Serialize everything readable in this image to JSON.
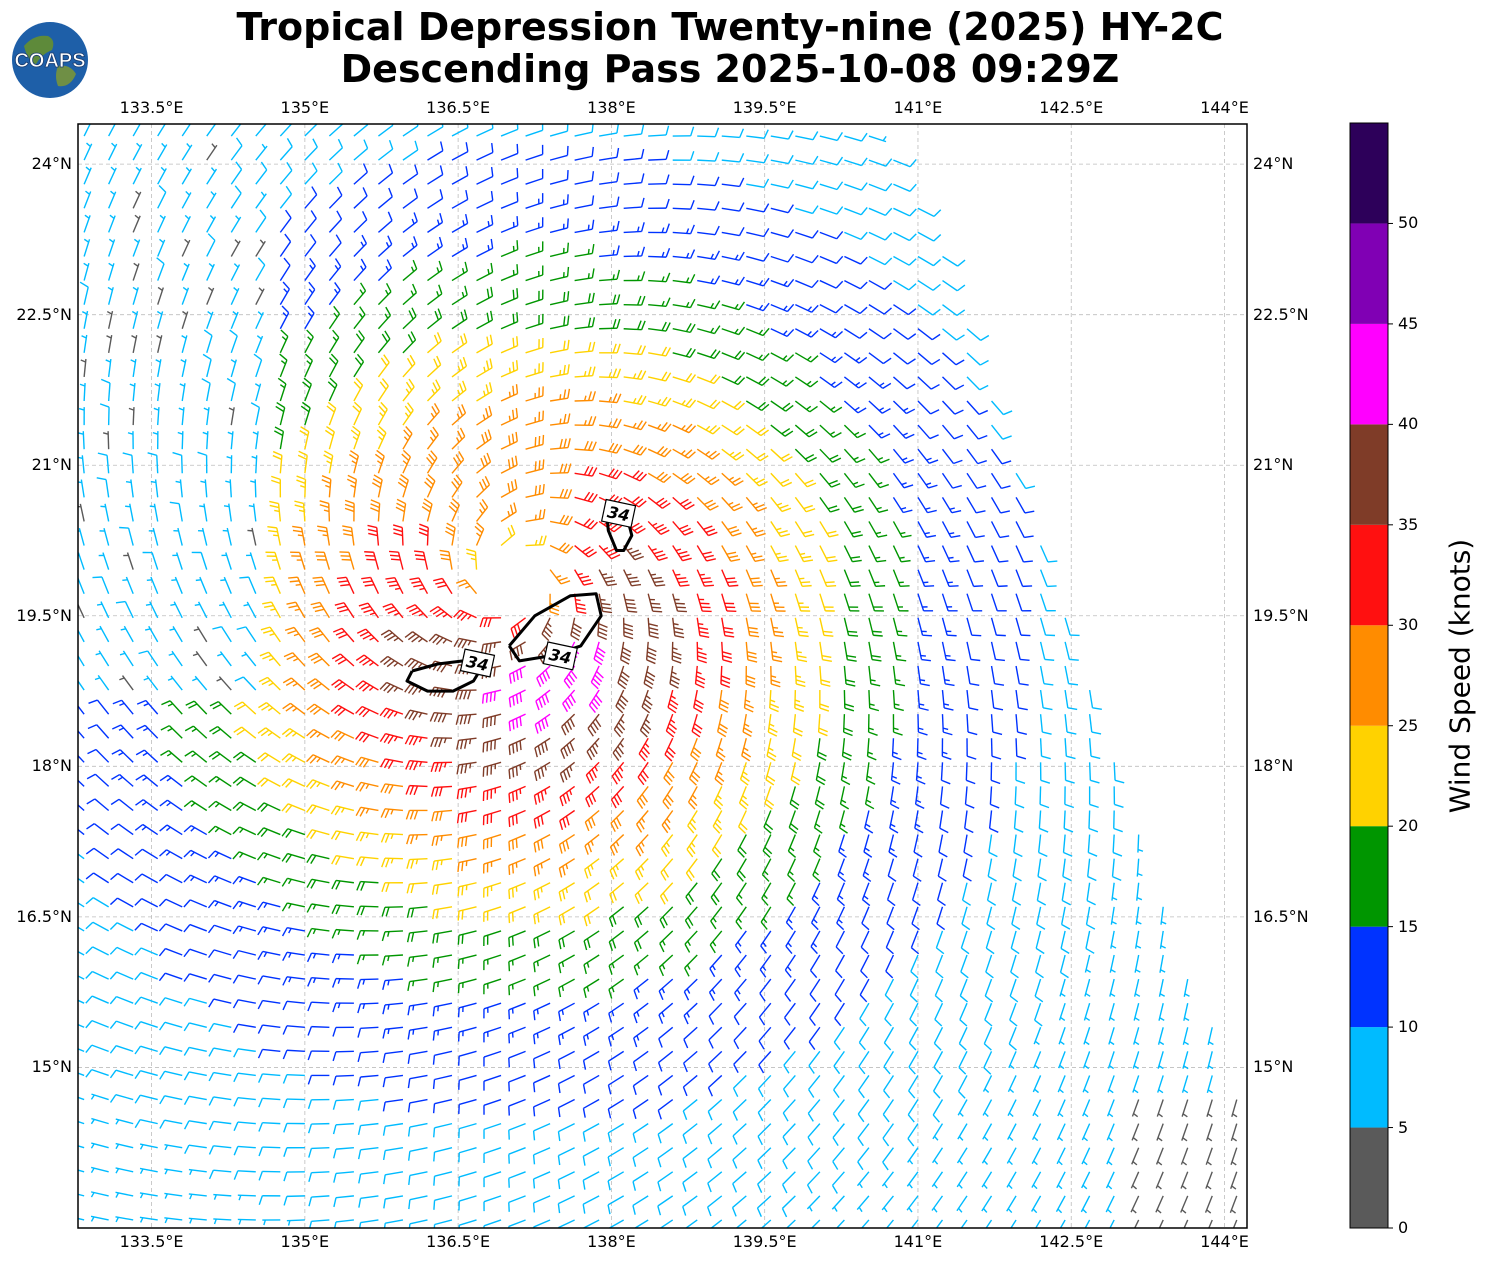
{
  "header": {
    "title_line1": "Tropical Depression Twenty-nine (2025) HY-2C",
    "title_line2": "Descending Pass 2025-10-08 09:29Z",
    "logo_text": "COAPS"
  },
  "map": {
    "lon_ticks": [
      "133.5°E",
      "135°E",
      "136.5°E",
      "138°E",
      "139.5°E",
      "141°E",
      "142.5°E",
      "144°E"
    ],
    "lat_ticks": [
      "24°N",
      "22.5°N",
      "21°N",
      "19.5°N",
      "18°N",
      "16.5°N",
      "15°N"
    ],
    "lon_values": [
      133.5,
      135,
      136.5,
      138,
      139.5,
      141,
      142.5,
      144
    ],
    "lat_values": [
      24,
      22.5,
      21,
      19.5,
      18,
      16.5,
      15
    ],
    "lon_range": [
      132.78,
      144.22
    ],
    "lat_range": [
      13.4,
      24.4
    ],
    "storm_center": {
      "lon": 137.05,
      "lat": 19.85
    },
    "contour_label": "34",
    "contour_labels": [
      {
        "text": "34",
        "lon": 138.07,
        "lat": 20.52
      },
      {
        "text": "34",
        "lon": 136.69,
        "lat": 19.03
      },
      {
        "text": "34",
        "lon": 137.5,
        "lat": 19.1
      }
    ]
  },
  "colorbar": {
    "title": "Wind Speed (knots)",
    "ticks": [
      "0",
      "5",
      "10",
      "15",
      "20",
      "25",
      "30",
      "35",
      "40",
      "45",
      "50"
    ],
    "bins": [
      {
        "min": 0,
        "max": 5,
        "color": "#5a5a5a"
      },
      {
        "min": 5,
        "max": 10,
        "color": "#00bbff"
      },
      {
        "min": 10,
        "max": 15,
        "color": "#0033ff"
      },
      {
        "min": 15,
        "max": 20,
        "color": "#009600"
      },
      {
        "min": 20,
        "max": 25,
        "color": "#ffd200"
      },
      {
        "min": 25,
        "max": 30,
        "color": "#ff8c00"
      },
      {
        "min": 30,
        "max": 35,
        "color": "#ff1010"
      },
      {
        "min": 35,
        "max": 40,
        "color": "#7f3c28"
      },
      {
        "min": 40,
        "max": 45,
        "color": "#ff00ff"
      },
      {
        "min": 45,
        "max": 50,
        "color": "#8000b4"
      },
      {
        "min": 50,
        "max": 55,
        "color": "#2d005a"
      }
    ]
  }
}
